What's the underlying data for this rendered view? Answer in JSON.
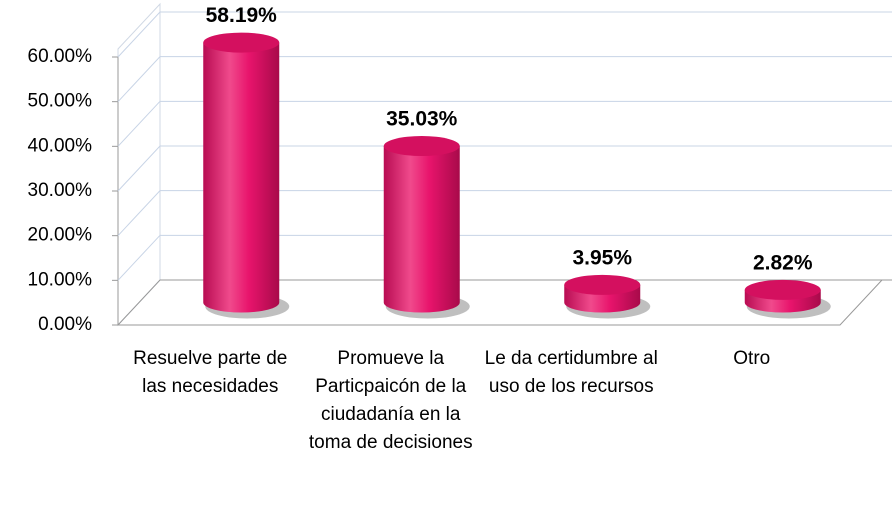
{
  "chart_data": {
    "type": "bar3d",
    "categories": [
      "Resuelve parte de las necesidades",
      "Promueve la Particpaicón de la ciudadanía en la toma de decisiones",
      "Le da certidumbre al uso de los recursos",
      "Otro"
    ],
    "values": [
      58.19,
      35.03,
      3.95,
      2.82
    ],
    "value_labels": [
      "58.19%",
      "35.03%",
      "3.95%",
      "2.82%"
    ],
    "color": "#e8146c",
    "ylim": [
      0,
      60
    ],
    "yticks": [
      {
        "value": 0,
        "label": "0.00%"
      },
      {
        "value": 10,
        "label": "10.00%"
      },
      {
        "value": 20,
        "label": "20.00%"
      },
      {
        "value": 30,
        "label": "30.00%"
      },
      {
        "value": 40,
        "label": "40.00%"
      },
      {
        "value": 50,
        "label": "50.00%"
      },
      {
        "value": 60,
        "label": "60.00%"
      }
    ],
    "grid": true
  }
}
